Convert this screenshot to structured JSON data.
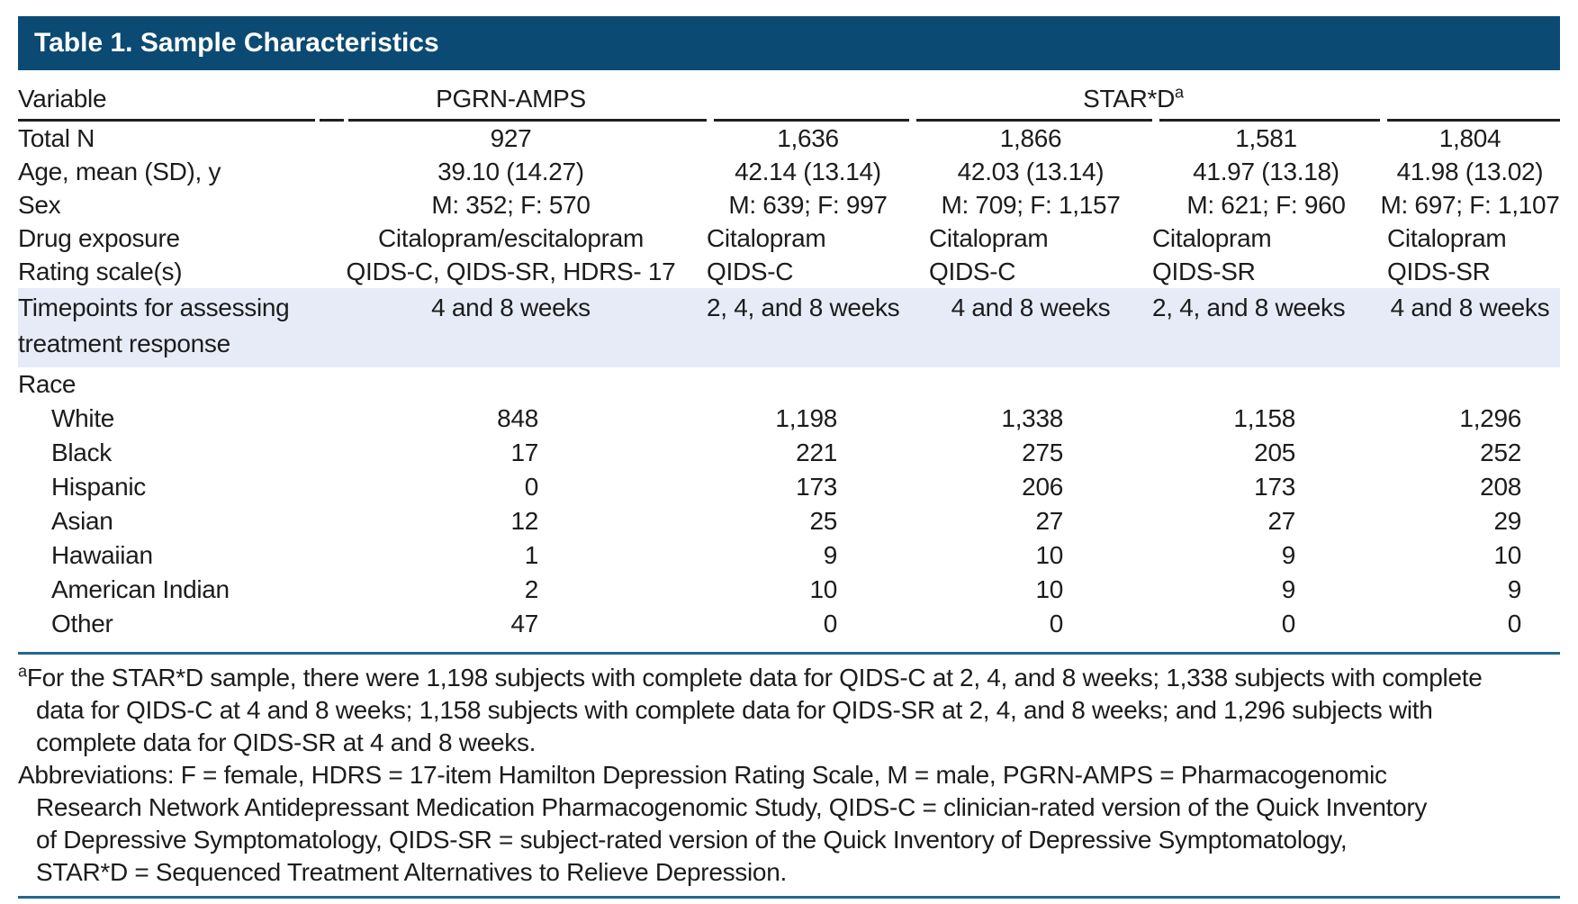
{
  "table": {
    "title": "Table 1. Sample Characteristics",
    "header": {
      "variable": "Variable",
      "group1": "PGRN-AMPS",
      "group2": "STAR*D",
      "group2_sup": "a"
    },
    "rows": [
      {
        "label": "Total N",
        "values": [
          "927",
          "1,636",
          "1,866",
          "1,581",
          "1,804"
        ]
      },
      {
        "label": "Age, mean (SD), y",
        "values": [
          "39.10 (14.27)",
          "42.14 (13.14)",
          "42.03 (13.14)",
          "41.97 (13.18)",
          "41.98 (13.02)"
        ]
      },
      {
        "label": "Sex",
        "values": [
          "M: 352; F: 570",
          "M: 639; F: 997",
          "M: 709; F: 1,157",
          "M: 621; F: 960",
          "M: 697; F: 1,107"
        ]
      },
      {
        "label": "Drug exposure",
        "values": [
          "Citalopram/escitalopram",
          "Citalopram",
          "Citalopram",
          "Citalopram",
          "Citalopram"
        ]
      },
      {
        "label": "Rating scale(s)",
        "values": [
          "QIDS-C, QIDS-SR, HDRS- 17",
          "QIDS-C",
          "QIDS-C",
          "QIDS-SR",
          "QIDS-SR"
        ]
      }
    ],
    "timepoints": {
      "label_line1": "Timepoints for assessing",
      "label_line2": "treatment response",
      "values": [
        "4 and 8 weeks",
        "2, 4, and 8 weeks",
        "4 and 8 weeks",
        "2, 4, and 8 weeks",
        "4 and 8 weeks"
      ]
    },
    "race": {
      "label": "Race",
      "rows": [
        {
          "label": "White",
          "values": [
            "848",
            "1,198",
            "1,338",
            "1,158",
            "1,296"
          ]
        },
        {
          "label": "Black",
          "values": [
            "17",
            "221",
            "275",
            "205",
            "252"
          ]
        },
        {
          "label": "Hispanic",
          "values": [
            "0",
            "173",
            "206",
            "173",
            "208"
          ]
        },
        {
          "label": "Asian",
          "values": [
            "12",
            "25",
            "27",
            "27",
            "29"
          ]
        },
        {
          "label": "Hawaiian",
          "values": [
            "1",
            "9",
            "10",
            "9",
            "10"
          ]
        },
        {
          "label": "American Indian",
          "values": [
            "2",
            "10",
            "10",
            "9",
            "9"
          ]
        },
        {
          "label": "Other",
          "values": [
            "47",
            "0",
            "0",
            "0",
            "0"
          ]
        }
      ]
    }
  },
  "footnotes": {
    "marker": "a",
    "a_lines": [
      "For the STAR*D sample, there were 1,198 subjects with complete data for QIDS-C at 2, 4, and 8 weeks; 1,338 subjects with complete",
      "data for QIDS-C at 4 and 8 weeks; 1,158 subjects with complete data for QIDS-SR at 2, 4, and 8 weeks; and 1,296 subjects with",
      "complete data for QIDS-SR at 4 and 8 weeks."
    ],
    "abbrev_lines": [
      "Abbreviations: F = female, HDRS = 17-item Hamilton Depression Rating Scale, M = male, PGRN-AMPS = Pharmacogenomic",
      "Research Network Antidepressant Medication Pharmacogenomic Study, QIDS-C = clinician-rated version of the Quick Inventory",
      "of Depressive Symptomatology, QIDS-SR = subject-rated version of the Quick Inventory of Depressive Symptomatology,",
      "STAR*D = Sequenced Treatment Alternatives to Relieve Depression."
    ]
  },
  "colors": {
    "title_bar": "#0b4a72",
    "highlight_row": "#e7ebf8",
    "header_rule": "#1f1f1f",
    "blue_rule": "#23688f",
    "text": "#1c1c1c"
  }
}
